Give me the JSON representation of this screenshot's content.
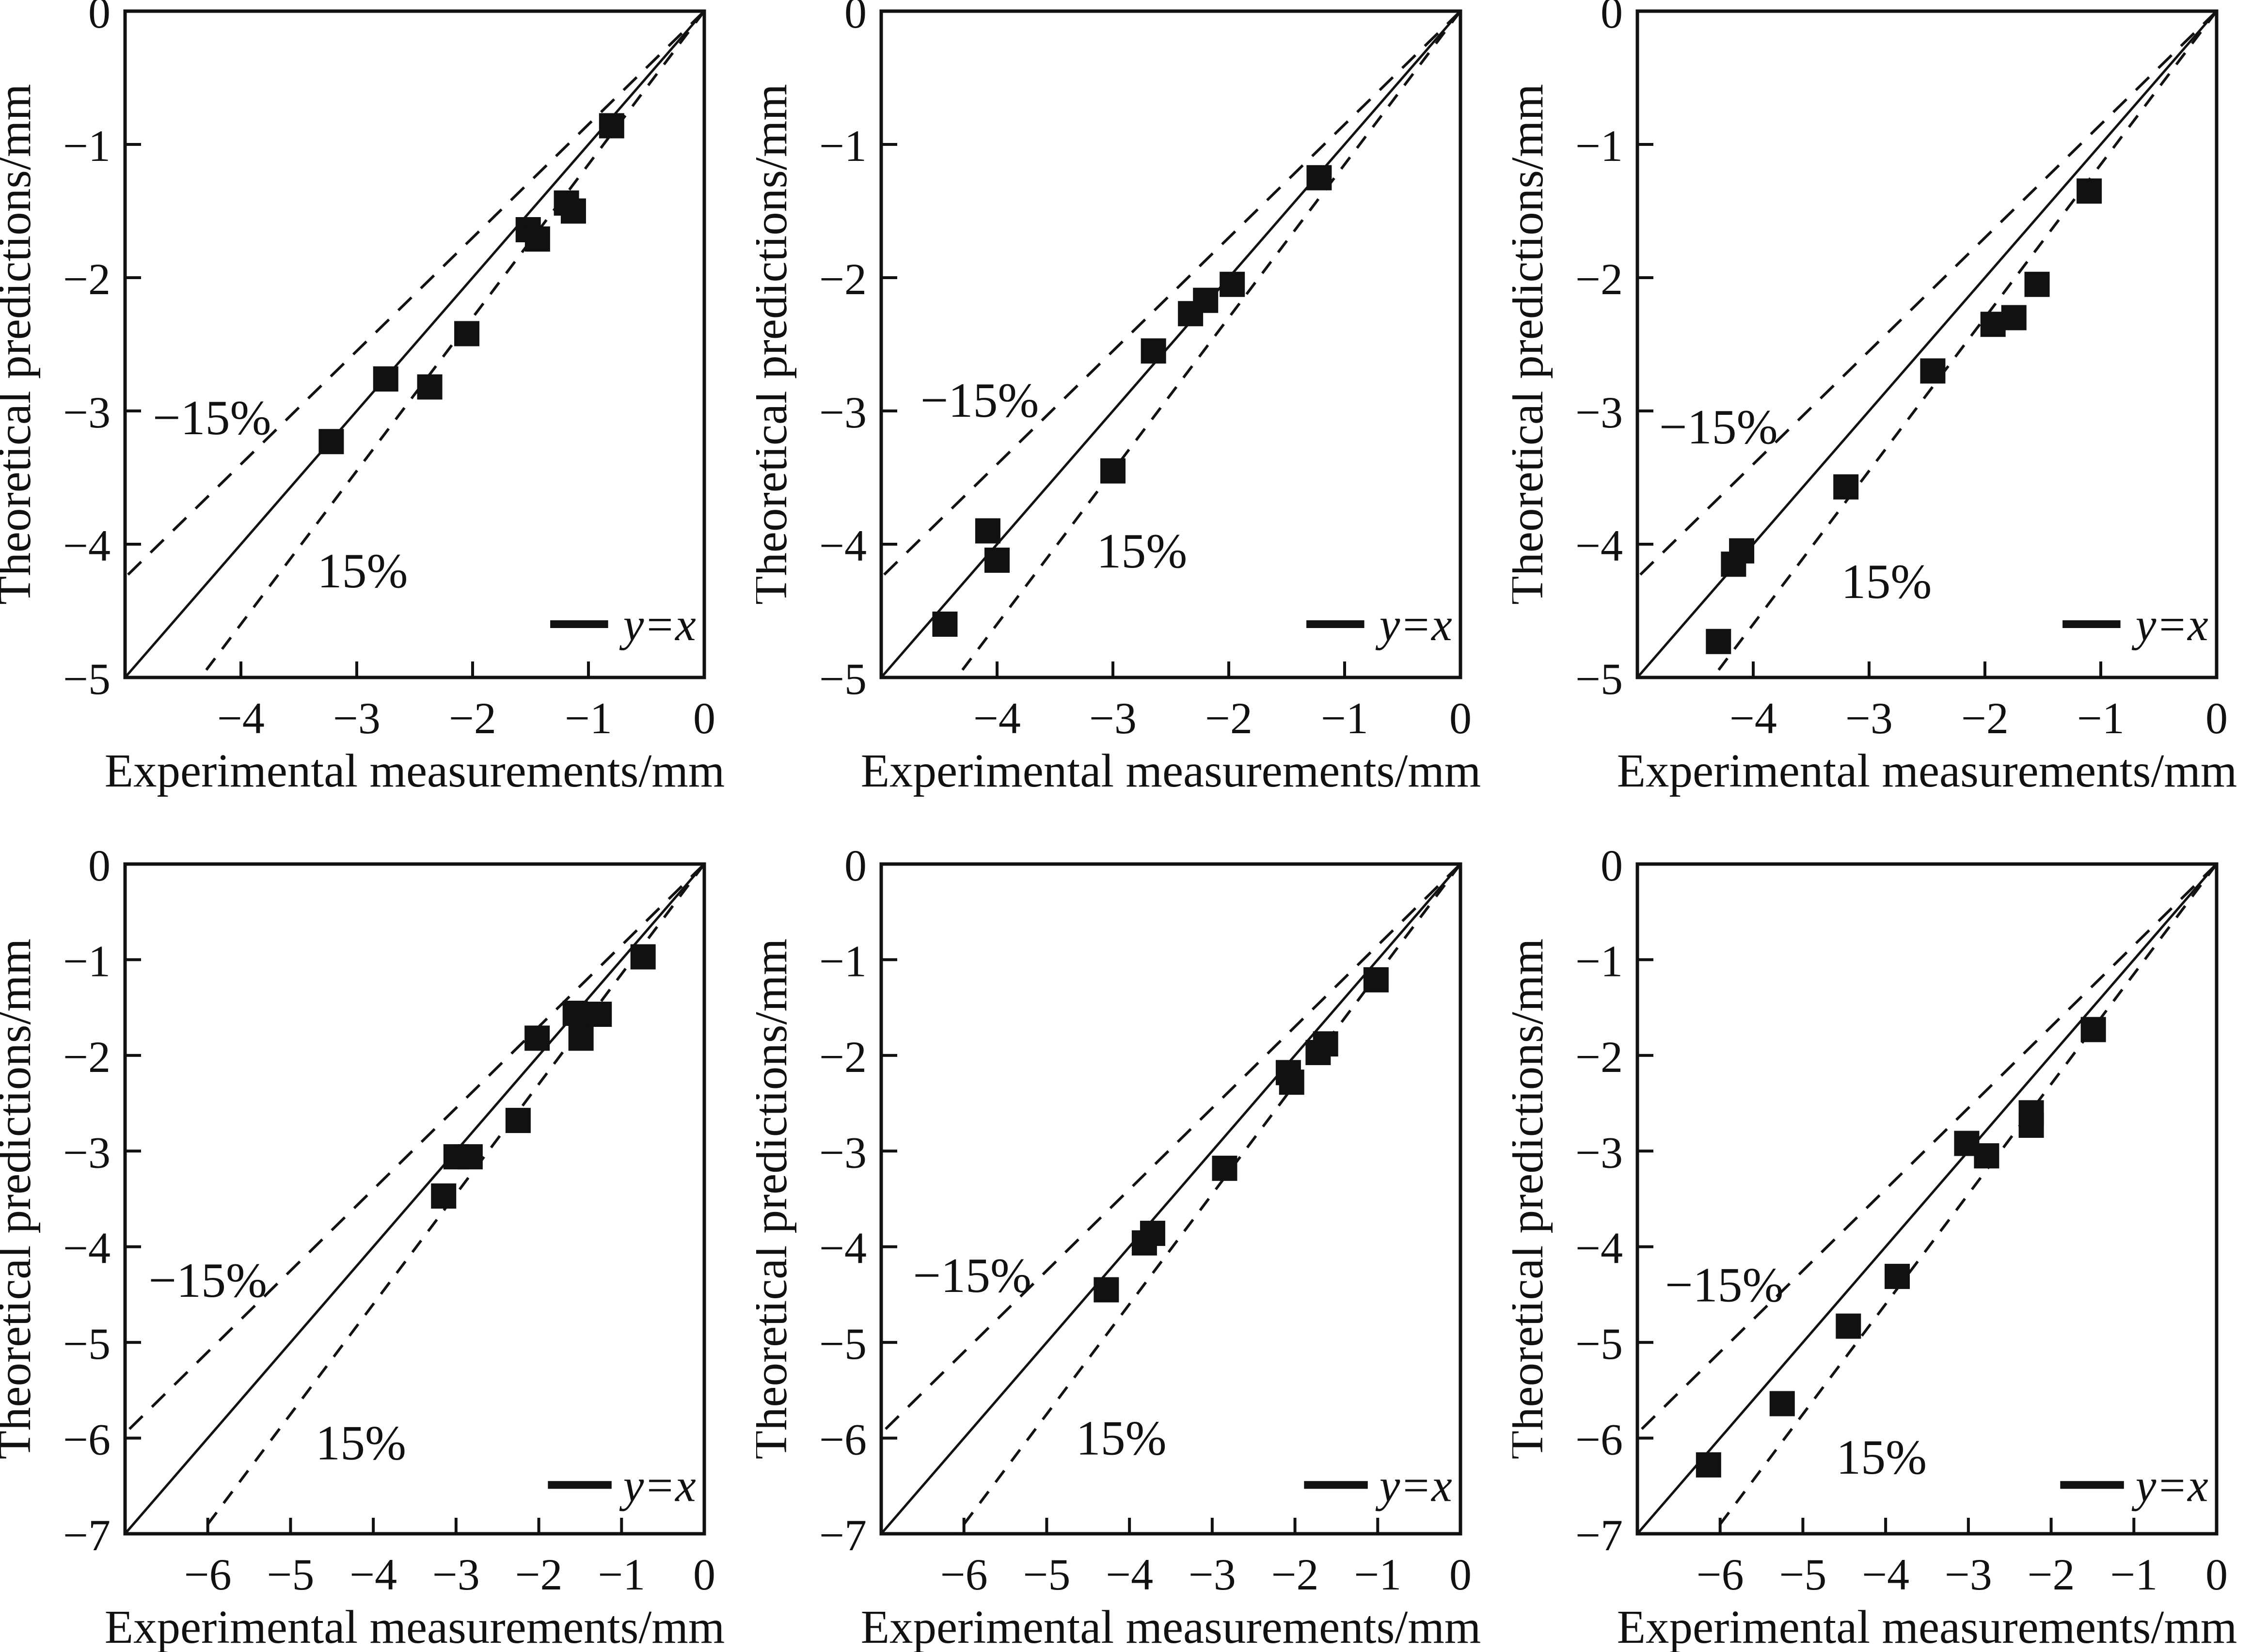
{
  "figure": {
    "background": "#ffffff",
    "ink": "#111111"
  },
  "shared": {
    "xlabel": "Experimental measurements/mm",
    "ylabel": "Theoretical predictions/mm",
    "legend_label": "y=x",
    "upper_line_label": "−15%",
    "lower_line_label": "15%",
    "upper_line_slope": 0.85,
    "lower_line_slope": 1.15,
    "marker": "black-square"
  },
  "chart_data": [
    {
      "type": "scatter",
      "panel": "top-left",
      "xlabel": "Experimental measurements/mm",
      "ylabel": "Theoretical predictions/mm",
      "xlim": [
        -5,
        0
      ],
      "ylim": [
        -5,
        0
      ],
      "xticks": [
        -4,
        -3,
        -2,
        -1,
        0
      ],
      "yticks": [
        0,
        -1,
        -2,
        -3,
        -4,
        -5
      ],
      "grid": false,
      "points": [
        [
          -0.8,
          -0.86
        ],
        [
          -1.19,
          -1.44
        ],
        [
          -1.13,
          -1.5
        ],
        [
          -1.52,
          -1.64
        ],
        [
          -1.44,
          -1.71
        ],
        [
          -2.05,
          -2.42
        ],
        [
          -2.75,
          -2.76
        ],
        [
          -2.37,
          -2.82
        ],
        [
          -3.22,
          -3.23
        ]
      ],
      "annotations": {
        "minus15": {
          "x": -4.25,
          "y": -3.05
        },
        "plus15": {
          "x": -2.95,
          "y": -4.2
        }
      },
      "legend": {
        "line_x1": -1.33,
        "line_x2": -0.83,
        "text_x": -0.7,
        "y": -4.6
      }
    },
    {
      "type": "scatter",
      "panel": "top-middle",
      "xlabel": "Experimental measurements/mm",
      "ylabel": "Theoretical predictions/mm",
      "xlim": [
        -5,
        0
      ],
      "ylim": [
        -5,
        0
      ],
      "xticks": [
        -4,
        -3,
        -2,
        -1,
        0
      ],
      "yticks": [
        0,
        -1,
        -2,
        -3,
        -4,
        -5
      ],
      "grid": false,
      "points": [
        [
          -1.22,
          -1.25
        ],
        [
          -1.97,
          -2.05
        ],
        [
          -2.2,
          -2.17
        ],
        [
          -2.33,
          -2.27
        ],
        [
          -2.65,
          -2.55
        ],
        [
          -3.0,
          -3.45
        ],
        [
          -4.08,
          -3.9
        ],
        [
          -4.0,
          -4.12
        ],
        [
          -4.45,
          -4.6
        ]
      ],
      "annotations": {
        "minus15": {
          "x": -4.15,
          "y": -2.92
        },
        "plus15": {
          "x": -2.75,
          "y": -4.05
        }
      },
      "legend": {
        "line_x1": -1.33,
        "line_x2": -0.83,
        "text_x": -0.7,
        "y": -4.6
      }
    },
    {
      "type": "scatter",
      "panel": "top-right",
      "xlabel": "Experimental measurements/mm",
      "ylabel": "Theoretical predictions/mm",
      "xlim": [
        -5,
        0
      ],
      "ylim": [
        -5,
        0
      ],
      "xticks": [
        -4,
        -3,
        -2,
        -1,
        0
      ],
      "yticks": [
        0,
        -1,
        -2,
        -3,
        -4,
        -5
      ],
      "grid": false,
      "points": [
        [
          -1.1,
          -1.35
        ],
        [
          -1.55,
          -2.05
        ],
        [
          -1.75,
          -2.3
        ],
        [
          -1.93,
          -2.35
        ],
        [
          -2.45,
          -2.7
        ],
        [
          -3.2,
          -3.57
        ],
        [
          -4.1,
          -4.05
        ],
        [
          -4.17,
          -4.15
        ],
        [
          -4.3,
          -4.73
        ]
      ],
      "annotations": {
        "minus15": {
          "x": -4.3,
          "y": -3.12
        },
        "plus15": {
          "x": -2.85,
          "y": -4.28
        }
      },
      "legend": {
        "line_x1": -1.33,
        "line_x2": -0.83,
        "text_x": -0.7,
        "y": -4.6
      }
    },
    {
      "type": "scatter",
      "panel": "bottom-left",
      "xlabel": "Experimental measurements/mm",
      "ylabel": "Theoretical predictions/mm",
      "xlim": [
        -7,
        0
      ],
      "ylim": [
        -7,
        0
      ],
      "xticks": [
        -6,
        -5,
        -4,
        -3,
        -2,
        -1,
        0
      ],
      "yticks": [
        0,
        -1,
        -2,
        -3,
        -4,
        -5,
        -6,
        -7
      ],
      "grid": false,
      "points": [
        [
          -0.74,
          -0.97
        ],
        [
          -1.56,
          -1.56
        ],
        [
          -1.27,
          -1.57
        ],
        [
          -2.02,
          -1.82
        ],
        [
          -1.49,
          -1.82
        ],
        [
          -2.25,
          -2.68
        ],
        [
          -3.0,
          -3.06
        ],
        [
          -2.83,
          -3.06
        ],
        [
          -3.15,
          -3.47
        ]
      ],
      "annotations": {
        "minus15": {
          "x": -6.0,
          "y": -4.35
        },
        "plus15": {
          "x": -4.15,
          "y": -6.05
        }
      },
      "legend": {
        "line_x1": -1.89,
        "line_x2": -1.12,
        "text_x": -0.98,
        "y": -6.49
      }
    },
    {
      "type": "scatter",
      "panel": "bottom-middle",
      "xlabel": "Experimental measurements/mm",
      "ylabel": "Theoretical predictions/mm",
      "xlim": [
        -7,
        0
      ],
      "ylim": [
        -7,
        0
      ],
      "xticks": [
        -6,
        -5,
        -4,
        -3,
        -2,
        -1,
        0
      ],
      "yticks": [
        0,
        -1,
        -2,
        -3,
        -4,
        -5,
        -6,
        -7
      ],
      "grid": false,
      "points": [
        [
          -1.02,
          -1.21
        ],
        [
          -1.63,
          -1.88
        ],
        [
          -1.72,
          -1.97
        ],
        [
          -2.08,
          -2.18
        ],
        [
          -2.04,
          -2.28
        ],
        [
          -2.85,
          -3.18
        ],
        [
          -3.72,
          -3.86
        ],
        [
          -3.82,
          -3.96
        ],
        [
          -4.28,
          -4.45
        ]
      ],
      "annotations": {
        "minus15": {
          "x": -5.9,
          "y": -4.3
        },
        "plus15": {
          "x": -4.1,
          "y": -6.0
        }
      },
      "legend": {
        "line_x1": -1.89,
        "line_x2": -1.12,
        "text_x": -0.98,
        "y": -6.49
      }
    },
    {
      "type": "scatter",
      "panel": "bottom-right",
      "xlabel": "Experimental measurements/mm",
      "ylabel": "Theoretical predictions/mm",
      "xlim": [
        -7,
        0
      ],
      "ylim": [
        -7,
        0
      ],
      "xticks": [
        -6,
        -5,
        -4,
        -3,
        -2,
        -1,
        0
      ],
      "yticks": [
        0,
        -1,
        -2,
        -3,
        -4,
        -5,
        -6,
        -7
      ],
      "grid": false,
      "points": [
        [
          -1.49,
          -1.73
        ],
        [
          -2.24,
          -2.6
        ],
        [
          -2.24,
          -2.73
        ],
        [
          -3.02,
          -2.92
        ],
        [
          -2.78,
          -3.05
        ],
        [
          -3.86,
          -4.31
        ],
        [
          -4.45,
          -4.83
        ],
        [
          -5.25,
          -5.64
        ],
        [
          -6.14,
          -6.28
        ]
      ],
      "annotations": {
        "minus15": {
          "x": -5.95,
          "y": -4.4
        },
        "plus15": {
          "x": -4.05,
          "y": -6.2
        }
      },
      "legend": {
        "line_x1": -1.89,
        "line_x2": -1.12,
        "text_x": -0.98,
        "y": -6.49
      }
    }
  ]
}
